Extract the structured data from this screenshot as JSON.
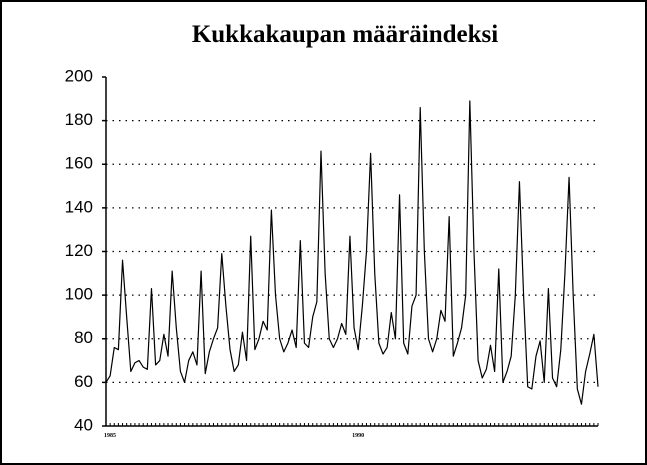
{
  "chart_data": {
    "type": "line",
    "title": "Kukkakaupan määräindeksi",
    "categories": [
      "1985",
      null,
      null,
      null,
      null,
      null,
      null,
      null,
      null,
      null,
      null,
      null,
      null,
      null,
      null,
      null,
      null,
      null,
      null,
      null,
      null,
      null,
      null,
      null,
      null,
      null,
      null,
      null,
      null,
      null,
      null,
      null,
      null,
      null,
      null,
      null,
      null,
      null,
      null,
      null,
      null,
      null,
      null,
      null,
      null,
      null,
      null,
      null,
      null,
      null,
      null,
      null,
      null,
      null,
      null,
      null,
      null,
      null,
      null,
      null,
      "1990",
      null,
      null,
      null,
      null,
      null,
      null,
      null,
      null,
      null,
      null,
      null,
      null,
      null,
      null,
      null,
      null,
      null,
      null,
      null,
      null,
      null,
      null,
      null,
      null,
      null,
      null,
      null,
      null,
      null,
      null,
      null,
      null,
      null,
      null,
      null,
      null,
      null,
      null,
      null,
      null,
      null,
      null,
      null,
      null,
      null,
      null,
      null,
      null,
      null,
      null,
      null,
      null,
      null,
      null,
      null,
      null,
      null,
      null,
      null
    ],
    "values": [
      60,
      63,
      76,
      75,
      116,
      90,
      65,
      69,
      70,
      67,
      66,
      103,
      68,
      70,
      82,
      72,
      111,
      85,
      65,
      60,
      70,
      74,
      68,
      111,
      64,
      74,
      80,
      85,
      119,
      95,
      75,
      65,
      68,
      83,
      70,
      127,
      75,
      80,
      88,
      84,
      139,
      100,
      80,
      74,
      78,
      84,
      76,
      125,
      78,
      76,
      90,
      97,
      166,
      110,
      80,
      76,
      80,
      87,
      82,
      127,
      85,
      75,
      95,
      120,
      165,
      110,
      78,
      73,
      76,
      92,
      80,
      146,
      78,
      73,
      95,
      100,
      186,
      120,
      80,
      74,
      80,
      93,
      88,
      136,
      72,
      78,
      85,
      100,
      189,
      120,
      70,
      62,
      66,
      77,
      65,
      112,
      60,
      65,
      72,
      100,
      152,
      100,
      58,
      57,
      72,
      79,
      60,
      103,
      62,
      58,
      75,
      110,
      154,
      100,
      57,
      50,
      65,
      73,
      82,
      58
    ],
    "color": "#000000",
    "ylim": [
      40,
      200
    ],
    "yticks": [
      40,
      60,
      80,
      100,
      120,
      140,
      160,
      180,
      200
    ],
    "grid": true
  }
}
